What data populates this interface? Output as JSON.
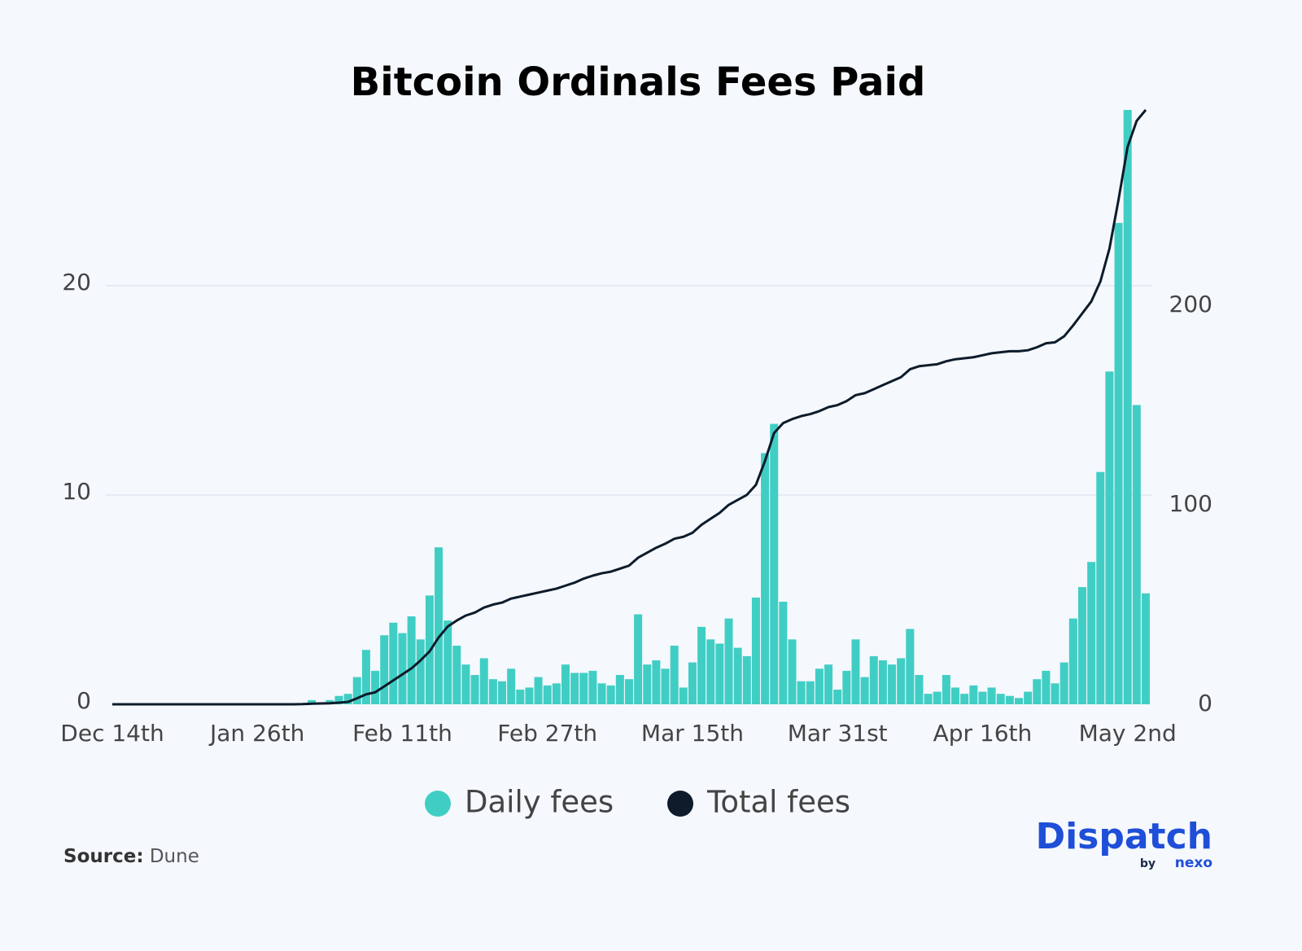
{
  "chart_data": {
    "type": "bar-line",
    "title": "Bitcoin Ordinals Fees Paid",
    "categories": [
      "Dec 14th",
      null,
      null,
      null,
      null,
      null,
      null,
      null,
      null,
      null,
      null,
      null,
      null,
      null,
      null,
      null,
      "Jan 26th",
      null,
      null,
      null,
      null,
      null,
      null,
      null,
      null,
      null,
      null,
      null,
      null,
      null,
      null,
      null,
      "Feb 11th",
      null,
      null,
      null,
      null,
      null,
      null,
      null,
      null,
      null,
      null,
      null,
      null,
      null,
      null,
      null,
      "Feb 27th",
      null,
      null,
      null,
      null,
      null,
      null,
      null,
      null,
      null,
      null,
      null,
      null,
      null,
      null,
      null,
      "Mar 15th",
      null,
      null,
      null,
      null,
      null,
      null,
      null,
      null,
      null,
      null,
      null,
      null,
      null,
      null,
      null,
      "Mar 31st",
      null,
      null,
      null,
      null,
      null,
      null,
      null,
      null,
      null,
      null,
      null,
      null,
      null,
      null,
      null,
      "Apr 16th",
      null,
      null,
      null,
      null,
      null,
      null,
      null,
      null,
      null,
      null,
      null,
      null,
      null,
      null,
      null,
      "May 2nd",
      null,
      null
    ],
    "series": [
      {
        "name": "Daily fees",
        "color": "#40cec4",
        "kind": "bar",
        "values": [
          0,
          0,
          0,
          0,
          0,
          0,
          0,
          0,
          0,
          0,
          0,
          0,
          0,
          0,
          0,
          0,
          0,
          0,
          0,
          0,
          0,
          0,
          0.2,
          0.1,
          0.2,
          0.4,
          0.5,
          1.3,
          2.6,
          1.6,
          3.3,
          3.9,
          3.4,
          4.2,
          3.1,
          5.2,
          7.5,
          4.0,
          2.8,
          1.9,
          1.4,
          2.2,
          1.2,
          1.1,
          1.7,
          0.7,
          0.8,
          1.3,
          0.9,
          1.0,
          1.9,
          1.5,
          1.5,
          1.6,
          1.0,
          0.9,
          1.4,
          1.2,
          4.3,
          1.9,
          2.1,
          1.7,
          2.8,
          0.8,
          2.0,
          3.7,
          3.1,
          2.9,
          4.1,
          2.7,
          2.3,
          5.1,
          12.0,
          13.4,
          4.9,
          3.1,
          1.1,
          1.1,
          1.7,
          1.9,
          0.7,
          1.6,
          3.1,
          1.3,
          2.3,
          2.1,
          1.9,
          2.2,
          3.6,
          1.4,
          0.5,
          0.6,
          1.4,
          0.8,
          0.5,
          0.9,
          0.6,
          0.8,
          0.5,
          0.4,
          0.3,
          0.6,
          1.2,
          1.6,
          1.0,
          2.0,
          4.1,
          5.6,
          6.8,
          11.1,
          15.9,
          23.0,
          28.4,
          14.3,
          5.3
        ]
      },
      {
        "name": "Total fees",
        "color": "#0d1b2a",
        "kind": "line",
        "axis": "y2",
        "values": [
          0,
          0,
          0,
          0,
          0,
          0,
          0,
          0,
          0,
          0,
          0,
          0,
          0,
          0,
          0,
          0,
          0,
          0,
          0,
          0,
          0,
          0.1,
          0.3,
          0.4,
          0.5,
          0.8,
          1.2,
          3,
          5,
          6,
          9,
          12,
          15,
          18,
          22,
          26.5,
          33.5,
          39,
          42,
          44.5,
          46,
          48.5,
          50,
          51,
          53,
          54,
          55,
          56,
          57,
          58,
          59.5,
          61,
          63,
          64.5,
          65.7,
          66.5,
          68,
          69.5,
          73.5,
          76,
          78.5,
          80.5,
          83,
          84,
          86,
          90,
          93,
          96,
          100,
          102.5,
          105,
          110,
          122,
          136,
          141,
          143,
          144.5,
          145.5,
          147,
          149,
          150,
          152,
          155,
          156,
          158,
          160,
          162,
          164,
          168,
          169.5,
          170,
          170.5,
          172,
          173,
          173.5,
          174,
          175,
          176,
          176.5,
          177,
          177,
          177.5,
          179,
          181,
          181.5,
          184.5,
          190,
          196,
          202,
          212,
          228.5,
          253,
          279.5,
          292.5,
          298
        ]
      }
    ],
    "ylim": [
      0,
      28.4
    ],
    "yticks": [
      0,
      10,
      20
    ],
    "y2lim": [
      0,
      298
    ],
    "y2ticks": [
      0,
      100,
      200
    ],
    "grid": true
  },
  "source": {
    "label": "Source:",
    "text": "Dune"
  },
  "logo": {
    "name": "Dispatch",
    "by": "by",
    "brand": "nexo"
  }
}
